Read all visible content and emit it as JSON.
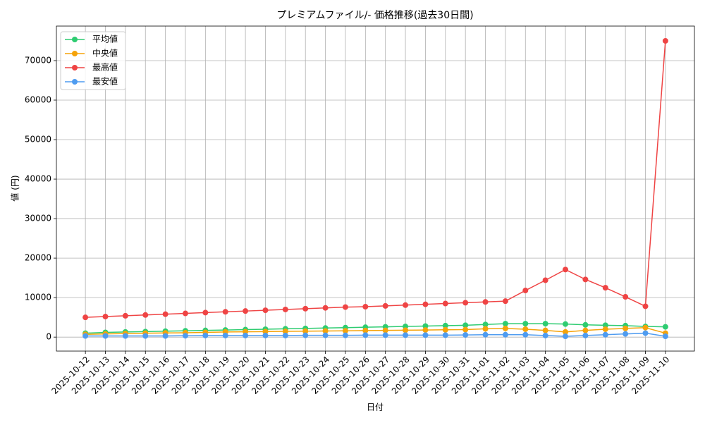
{
  "chart_data": {
    "type": "line",
    "title": "プレミアムファイル/- 価格推移(過去30日間)",
    "x_label": "日付",
    "y_label": "値 (円)",
    "categories": [
      "2025-10-12",
      "2025-10-13",
      "2025-10-14",
      "2025-10-15",
      "2025-10-16",
      "2025-10-17",
      "2025-10-18",
      "2025-10-19",
      "2025-10-20",
      "2025-10-21",
      "2025-10-22",
      "2025-10-23",
      "2025-10-24",
      "2025-10-25",
      "2025-10-26",
      "2025-10-27",
      "2025-10-28",
      "2025-10-29",
      "2025-10-30",
      "2025-10-31",
      "2025-11-01",
      "2025-11-02",
      "2025-11-03",
      "2025-11-04",
      "2025-11-05",
      "2025-11-06",
      "2025-11-07",
      "2025-11-08",
      "2025-11-09",
      "2025-11-10"
    ],
    "series": [
      {
        "name": "平均値",
        "color": "#2ecc71",
        "values": [
          1000,
          1200,
          1300,
          1400,
          1500,
          1600,
          1700,
          1800,
          1900,
          2000,
          2100,
          2200,
          2300,
          2400,
          2500,
          2600,
          2700,
          2800,
          2900,
          3000,
          3200,
          3400,
          3400,
          3400,
          3300,
          3100,
          3000,
          2900,
          2700,
          2600
        ]
      },
      {
        "name": "中央値",
        "color": "#f5a30a",
        "values": [
          700,
          800,
          900,
          1000,
          1050,
          1100,
          1200,
          1300,
          1350,
          1400,
          1450,
          1500,
          1550,
          1600,
          1650,
          1700,
          1750,
          1800,
          1850,
          1900,
          2100,
          2200,
          2000,
          1700,
          1300,
          1700,
          2000,
          2200,
          2400,
          1000
        ]
      },
      {
        "name": "最高値",
        "color": "#ef4444",
        "values": [
          5000,
          5200,
          5400,
          5600,
          5800,
          6000,
          6200,
          6400,
          6600,
          6800,
          7000,
          7200,
          7400,
          7600,
          7700,
          7900,
          8100,
          8300,
          8500,
          8700,
          8900,
          9100,
          11800,
          14400,
          17100,
          14600,
          12500,
          10200,
          7800,
          75000
        ]
      },
      {
        "name": "最安値",
        "color": "#4f9cf0",
        "values": [
          300,
          300,
          300,
          300,
          300,
          350,
          400,
          400,
          400,
          400,
          400,
          450,
          450,
          450,
          500,
          500,
          500,
          500,
          500,
          550,
          600,
          600,
          600,
          400,
          200,
          400,
          600,
          800,
          1000,
          200
        ]
      }
    ],
    "ylim": [
      -3540,
      78740
    ],
    "yticks": [
      0,
      10000,
      20000,
      30000,
      40000,
      50000,
      60000,
      70000
    ],
    "grid": true,
    "legend": "upper left"
  }
}
